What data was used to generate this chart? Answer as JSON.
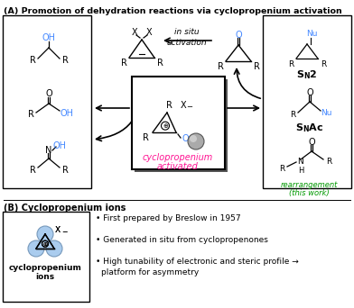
{
  "title_a": "(A) Promotion of dehydration reactions via cyclopropenium activation",
  "title_b": "(B) Cyclopropenium ions",
  "bg_color": "#ffffff",
  "blue_color": "#4488FF",
  "green_color": "#009900",
  "pink_color": "#FF1493",
  "light_blue": "#AACCEE",
  "bullet1": "First prepared by Breslow in 1957",
  "bullet2": "Generated in situ from cyclopropenones",
  "bullet3a": "High tunability of electronic and steric profile →",
  "bullet3b": "    platform for asymmetry"
}
